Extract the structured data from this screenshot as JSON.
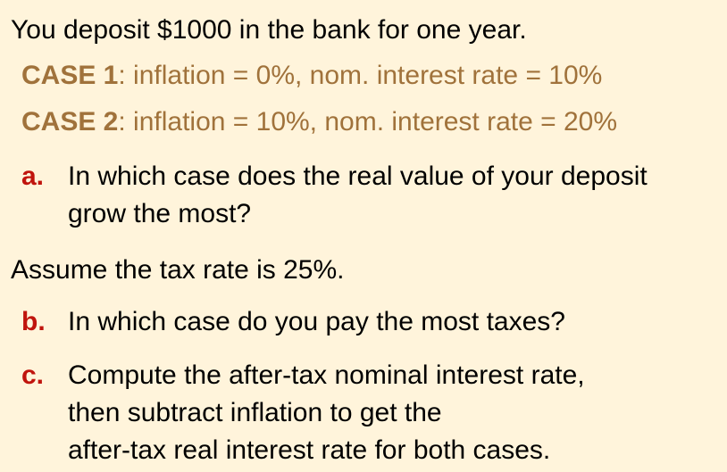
{
  "intro": "You deposit $1000 in the bank for one year.",
  "cases": [
    {
      "label": "CASE 1",
      "detail": ":  inflation = 0%, nom. interest rate = 10%"
    },
    {
      "label": "CASE 2",
      "detail": ":  inflation = 10%, nom. interest rate = 20%"
    }
  ],
  "questions": {
    "a": {
      "letter": "a.",
      "lines": [
        "In which case does the real value of your deposit",
        "grow the most?"
      ]
    },
    "b": {
      "letter": "b.",
      "lines": [
        "In which case do you pay the most taxes?"
      ]
    },
    "c": {
      "letter": "c.",
      "lines": [
        "Compute the after-tax nominal interest rate,",
        "then subtract inflation to get the",
        "after-tax real interest rate for both cases."
      ]
    }
  },
  "tax_assumption": "Assume the tax rate is 25%.",
  "colors": {
    "background": "#fff4db",
    "case_text": "#a0723b",
    "question_letter": "#c0140d"
  }
}
